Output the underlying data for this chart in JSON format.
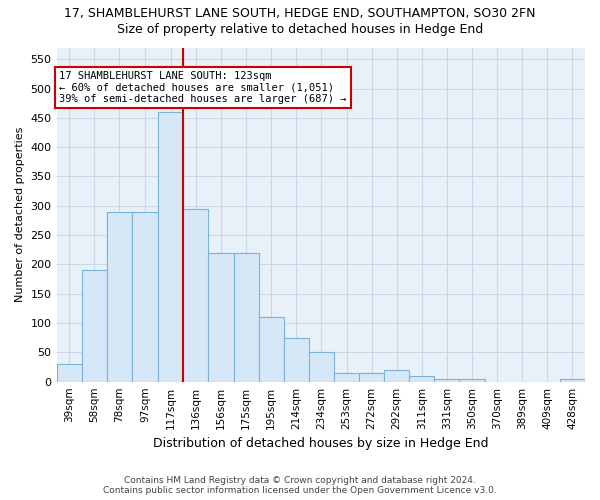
{
  "title1": "17, SHAMBLEHURST LANE SOUTH, HEDGE END, SOUTHAMPTON, SO30 2FN",
  "title2": "Size of property relative to detached houses in Hedge End",
  "xlabel": "Distribution of detached houses by size in Hedge End",
  "ylabel": "Number of detached properties",
  "footer1": "Contains HM Land Registry data © Crown copyright and database right 2024.",
  "footer2": "Contains public sector information licensed under the Open Government Licence v3.0.",
  "annotation_line1": "17 SHAMBLEHURST LANE SOUTH: 123sqm",
  "annotation_line2": "← 60% of detached houses are smaller (1,051)",
  "annotation_line3": "39% of semi-detached houses are larger (687) →",
  "bar_color": "#d6e8f7",
  "bar_edge_color": "#7ab3d9",
  "vline_color": "#cc0000",
  "annotation_box_color": "#ffffff",
  "annotation_box_edge": "#cc0000",
  "grid_color": "#c8d8ea",
  "background_color": "#e8f0f8",
  "categories": [
    "39sqm",
    "58sqm",
    "78sqm",
    "97sqm",
    "117sqm",
    "136sqm",
    "156sqm",
    "175sqm",
    "195sqm",
    "214sqm",
    "234sqm",
    "253sqm",
    "272sqm",
    "292sqm",
    "311sqm",
    "331sqm",
    "350sqm",
    "370sqm",
    "389sqm",
    "409sqm",
    "428sqm"
  ],
  "bin_edges": [
    29.5,
    48.5,
    67.5,
    86.5,
    106.5,
    125.5,
    144.5,
    163.5,
    182.5,
    201.5,
    220.5,
    239.5,
    258.5,
    277.5,
    296.5,
    315.5,
    334.5,
    353.5,
    372.5,
    391.5,
    410.5,
    429.5
  ],
  "values": [
    30,
    190,
    290,
    290,
    460,
    295,
    220,
    220,
    110,
    75,
    50,
    15,
    15,
    20,
    10,
    5,
    5,
    0,
    0,
    0,
    5
  ],
  "vline_x": 125.5,
  "ylim": [
    0,
    570
  ],
  "yticks": [
    0,
    50,
    100,
    150,
    200,
    250,
    300,
    350,
    400,
    450,
    500,
    550
  ]
}
